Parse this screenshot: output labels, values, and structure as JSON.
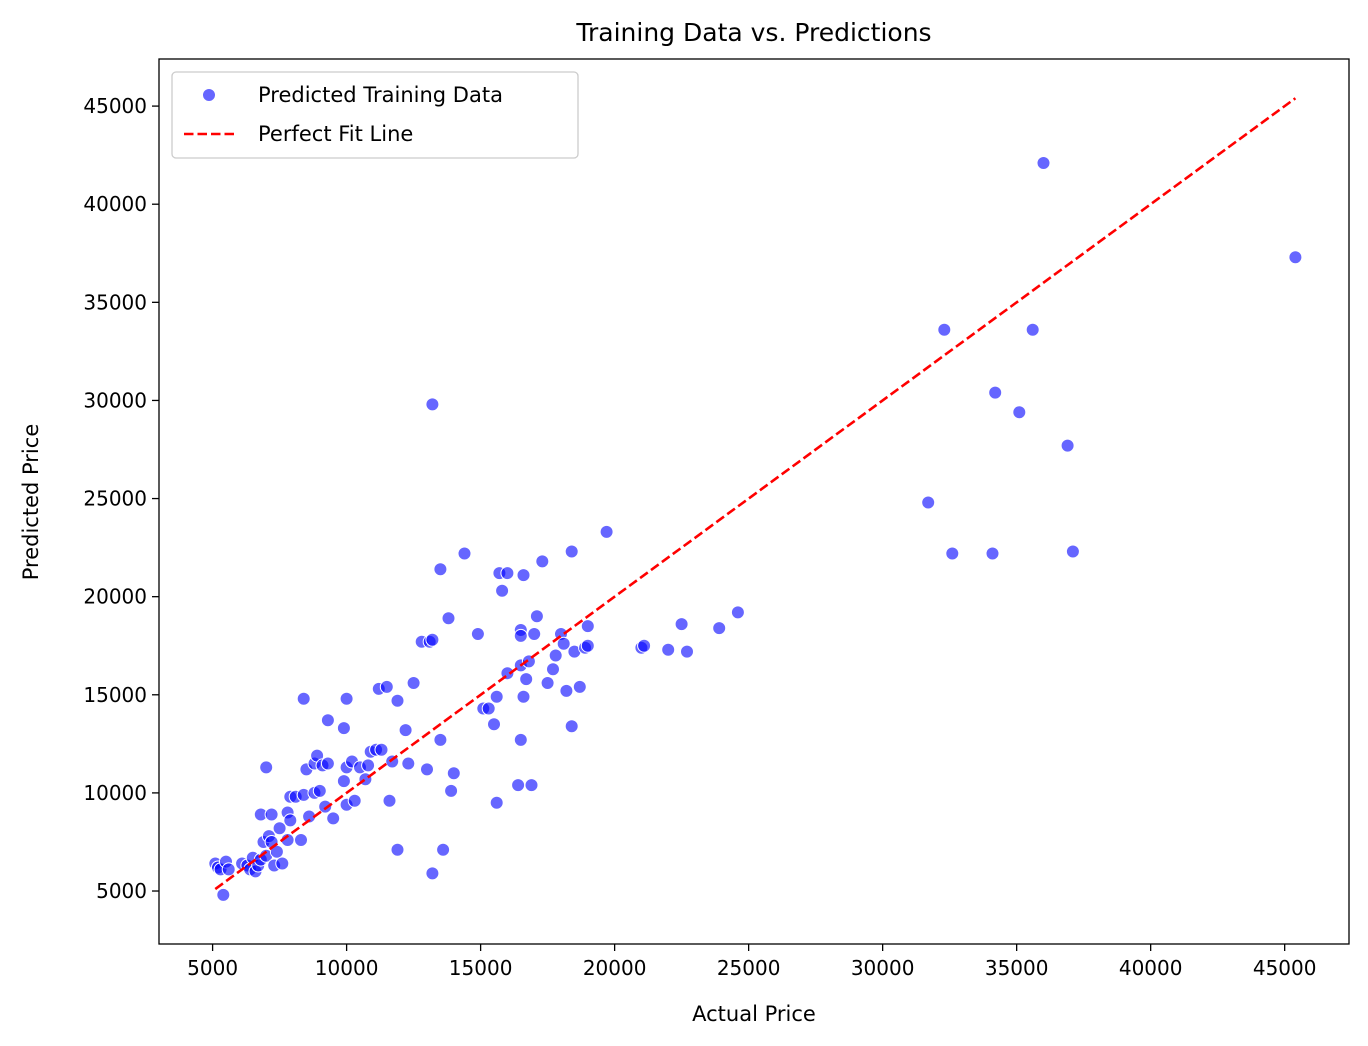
{
  "chart_data": {
    "type": "scatter",
    "title": "Training Data vs. Predictions",
    "xlabel": "Actual Price",
    "ylabel": "Predicted Price",
    "xlim": [
      3000,
      47400
    ],
    "ylim": [
      2300,
      47400
    ],
    "xticks": [
      5000,
      10000,
      15000,
      20000,
      25000,
      30000,
      35000,
      40000,
      45000
    ],
    "yticks": [
      5000,
      10000,
      15000,
      20000,
      25000,
      30000,
      35000,
      40000,
      45000
    ],
    "legend_position": "top-left",
    "grid": false,
    "series": [
      {
        "name": "Predicted Training Data",
        "kind": "scatter",
        "color": "#0000ff",
        "alpha": 0.6,
        "points": [
          [
            5100,
            6400
          ],
          [
            5200,
            6200
          ],
          [
            5300,
            6100
          ],
          [
            5400,
            4800
          ],
          [
            5500,
            6500
          ],
          [
            5600,
            6100
          ],
          [
            6100,
            6400
          ],
          [
            6300,
            6300
          ],
          [
            6400,
            6100
          ],
          [
            6500,
            6700
          ],
          [
            6600,
            6000
          ],
          [
            6700,
            6300
          ],
          [
            6800,
            6600
          ],
          [
            6800,
            8900
          ],
          [
            6900,
            7500
          ],
          [
            7000,
            6800
          ],
          [
            7000,
            11300
          ],
          [
            7100,
            7800
          ],
          [
            7200,
            7500
          ],
          [
            7200,
            8900
          ],
          [
            7300,
            6300
          ],
          [
            7400,
            7000
          ],
          [
            7500,
            8200
          ],
          [
            7600,
            6400
          ],
          [
            7800,
            7600
          ],
          [
            7800,
            9000
          ],
          [
            7900,
            8600
          ],
          [
            7900,
            9800
          ],
          [
            8100,
            9800
          ],
          [
            8300,
            7600
          ],
          [
            8400,
            14800
          ],
          [
            8400,
            9900
          ],
          [
            8500,
            11200
          ],
          [
            8600,
            8800
          ],
          [
            8800,
            11500
          ],
          [
            8800,
            10000
          ],
          [
            8900,
            11900
          ],
          [
            9000,
            10100
          ],
          [
            9100,
            11400
          ],
          [
            9200,
            9300
          ],
          [
            9300,
            13700
          ],
          [
            9300,
            11500
          ],
          [
            9500,
            8700
          ],
          [
            9900,
            13300
          ],
          [
            9900,
            10600
          ],
          [
            10000,
            14800
          ],
          [
            10000,
            11300
          ],
          [
            10000,
            9400
          ],
          [
            10200,
            11600
          ],
          [
            10300,
            9600
          ],
          [
            10500,
            11300
          ],
          [
            10700,
            10700
          ],
          [
            10800,
            11400
          ],
          [
            10900,
            12100
          ],
          [
            11100,
            12200
          ],
          [
            11200,
            15300
          ],
          [
            11300,
            12200
          ],
          [
            11500,
            15400
          ],
          [
            11600,
            9600
          ],
          [
            11700,
            11600
          ],
          [
            11900,
            7100
          ],
          [
            11900,
            14700
          ],
          [
            12200,
            13200
          ],
          [
            12300,
            11500
          ],
          [
            12500,
            15600
          ],
          [
            12800,
            17700
          ],
          [
            13000,
            11200
          ],
          [
            13100,
            17700
          ],
          [
            13200,
            17800
          ],
          [
            13200,
            29800
          ],
          [
            13200,
            5900
          ],
          [
            13500,
            12700
          ],
          [
            13500,
            21400
          ],
          [
            13600,
            7100
          ],
          [
            13800,
            18900
          ],
          [
            13900,
            10100
          ],
          [
            14000,
            11000
          ],
          [
            14400,
            22200
          ],
          [
            14900,
            18100
          ],
          [
            15100,
            14300
          ],
          [
            15300,
            14300
          ],
          [
            15500,
            13500
          ],
          [
            15600,
            14900
          ],
          [
            15600,
            9500
          ],
          [
            15700,
            21200
          ],
          [
            15800,
            20300
          ],
          [
            16000,
            21200
          ],
          [
            16000,
            16100
          ],
          [
            16400,
            10400
          ],
          [
            16500,
            12700
          ],
          [
            16500,
            18300
          ],
          [
            16500,
            18000
          ],
          [
            16500,
            16500
          ],
          [
            16600,
            21100
          ],
          [
            16600,
            14900
          ],
          [
            16700,
            15800
          ],
          [
            16800,
            16700
          ],
          [
            16900,
            10400
          ],
          [
            17000,
            18100
          ],
          [
            17100,
            19000
          ],
          [
            17300,
            21800
          ],
          [
            17500,
            15600
          ],
          [
            17700,
            16300
          ],
          [
            17800,
            17000
          ],
          [
            18000,
            18100
          ],
          [
            18100,
            17600
          ],
          [
            18200,
            15200
          ],
          [
            18400,
            13400
          ],
          [
            18400,
            22300
          ],
          [
            18500,
            17200
          ],
          [
            18700,
            15400
          ],
          [
            18900,
            17400
          ],
          [
            19000,
            17500
          ],
          [
            19000,
            18500
          ],
          [
            19700,
            23300
          ],
          [
            21000,
            17400
          ],
          [
            21100,
            17500
          ],
          [
            22000,
            17300
          ],
          [
            22500,
            18600
          ],
          [
            22700,
            17200
          ],
          [
            23900,
            18400
          ],
          [
            24600,
            19200
          ],
          [
            31700,
            24800
          ],
          [
            32300,
            33600
          ],
          [
            32600,
            22200
          ],
          [
            34100,
            22200
          ],
          [
            34200,
            30400
          ],
          [
            35100,
            29400
          ],
          [
            35600,
            33600
          ],
          [
            36000,
            42100
          ],
          [
            36900,
            27700
          ],
          [
            37100,
            22300
          ],
          [
            45400,
            37300
          ]
        ]
      },
      {
        "name": "Perfect Fit Line",
        "kind": "line",
        "color": "#ff0000",
        "dash": "dashed",
        "points": [
          [
            5100,
            5100
          ],
          [
            45400,
            45400
          ]
        ]
      }
    ]
  }
}
